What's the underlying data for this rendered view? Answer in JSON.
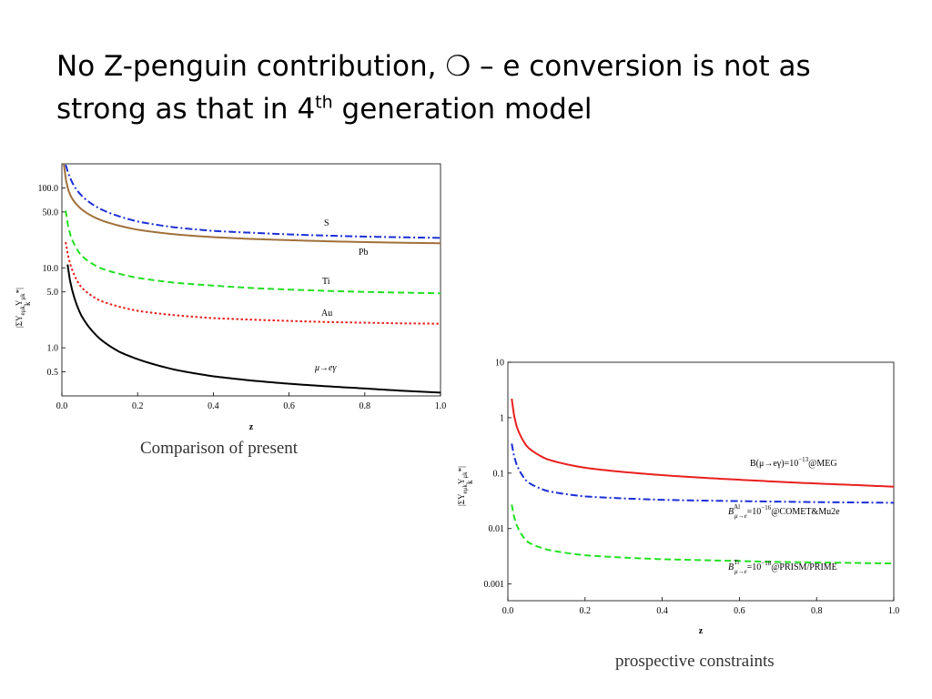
{
  "slide": {
    "title_line1_a": "No Z-penguin contribution, ",
    "title_symbol": "❍",
    "title_line1_b": " – e conversion is not as",
    "title_line2_a": "strong as that in 4",
    "title_line2_sup": "th",
    "title_line2_b": " generation model"
  },
  "captions": {
    "left": "Comparison of present",
    "right": "prospective  constraints"
  },
  "chart_data": [
    {
      "type": "line",
      "xlabel": "z",
      "ylabel_main": "|ΣY",
      "ylabel_sub": "k",
      "ylabel_tail": "eμk",
      "ylabel_end": "Y",
      "ylabel_end_sub": "μk",
      "ylabel_close": "*|",
      "x_ticks": [
        "0.0",
        "0.2",
        "0.4",
        "0.6",
        "0.8",
        "1.0"
      ],
      "y_ticks": [
        "0.5",
        "1.0",
        "5.0",
        "10.0",
        "50.0",
        "100.0"
      ],
      "xlim": [
        0,
        1
      ],
      "ylim": [
        0.25,
        200
      ],
      "yscale": "log",
      "grid": false,
      "series": [
        {
          "name": "S",
          "color": "#1c2fd6",
          "dash": "dashdot",
          "x": [
            0.01,
            0.02,
            0.05,
            0.1,
            0.2,
            0.3,
            0.4,
            0.5,
            0.6,
            0.7,
            0.8,
            0.9,
            1.0
          ],
          "y": [
            195,
            140,
            82,
            55,
            38,
            32,
            29,
            27.5,
            26.2,
            25.3,
            24.6,
            24.1,
            23.7
          ]
        },
        {
          "name": "Pb",
          "color": "#a0703a",
          "dash": "solid",
          "x": [
            0.005,
            0.02,
            0.05,
            0.1,
            0.2,
            0.3,
            0.4,
            0.5,
            0.6,
            0.7,
            0.8,
            0.9,
            1.0
          ],
          "y": [
            200,
            85,
            55,
            40,
            30,
            26.2,
            24.2,
            23.0,
            22.2,
            21.5,
            21.0,
            20.6,
            20.3
          ]
        },
        {
          "name": "Ti",
          "color": "#22e022",
          "dash": "dashed",
          "x": [
            0.01,
            0.02,
            0.05,
            0.1,
            0.2,
            0.3,
            0.4,
            0.5,
            0.6,
            0.7,
            0.8,
            0.9,
            1.0
          ],
          "y": [
            52,
            28,
            14.5,
            10,
            7.5,
            6.5,
            6.0,
            5.6,
            5.35,
            5.15,
            5.0,
            4.9,
            4.8
          ]
        },
        {
          "name": "Au",
          "color": "#e8201e",
          "dash": "dotted",
          "x": [
            0.01,
            0.02,
            0.05,
            0.1,
            0.2,
            0.3,
            0.4,
            0.5,
            0.6,
            0.7,
            0.8,
            0.9,
            1.0
          ],
          "y": [
            21,
            12,
            5.8,
            3.9,
            2.9,
            2.55,
            2.35,
            2.25,
            2.17,
            2.1,
            2.06,
            2.02,
            2.0
          ]
        },
        {
          "name": "μ→eγ",
          "color": "#000000",
          "dash": "solid",
          "x": [
            0.015,
            0.02,
            0.05,
            0.1,
            0.15,
            0.2,
            0.3,
            0.4,
            0.5,
            0.6,
            0.7,
            0.8,
            0.9,
            1.0
          ],
          "y": [
            11,
            7.5,
            2.6,
            1.3,
            0.9,
            0.72,
            0.53,
            0.44,
            0.39,
            0.355,
            0.33,
            0.31,
            0.29,
            0.275
          ]
        }
      ],
      "label_text": {
        "S": "S",
        "Pb": "Pb",
        "Ti": "Ti",
        "Au": "Au",
        "mueg": "μ→eγ"
      }
    },
    {
      "type": "line",
      "xlabel": "z",
      "ylabel_main": "|ΣY",
      "ylabel_sub": "k",
      "ylabel_tail": "eμk",
      "ylabel_end": "Y",
      "ylabel_end_sub": "μk",
      "ylabel_close": "*|",
      "x_ticks": [
        "0.0",
        "0.2",
        "0.4",
        "0.6",
        "0.8",
        "1.0"
      ],
      "y_ticks": [
        "0.001",
        "0.01",
        "0.1",
        "1",
        "10"
      ],
      "xlim": [
        0,
        1
      ],
      "ylim": [
        0.0005,
        10
      ],
      "yscale": "log",
      "grid": false,
      "series": [
        {
          "name": "B(μ→eγ)=10⁻¹³@MEG",
          "color": "#e8201e",
          "dash": "solid",
          "x": [
            0.01,
            0.02,
            0.05,
            0.1,
            0.2,
            0.3,
            0.4,
            0.5,
            0.6,
            0.7,
            0.8,
            0.9,
            1.0
          ],
          "y": [
            2.2,
            0.8,
            0.3,
            0.18,
            0.125,
            0.105,
            0.092,
            0.083,
            0.076,
            0.07,
            0.065,
            0.061,
            0.057
          ]
        },
        {
          "name": "B^Al_μ→e=10⁻¹⁶@COMET&Mu2e",
          "color": "#1c2fd6",
          "dash": "dashdot",
          "x": [
            0.01,
            0.02,
            0.05,
            0.1,
            0.2,
            0.3,
            0.4,
            0.5,
            0.6,
            0.7,
            0.8,
            0.9,
            1.0
          ],
          "y": [
            0.34,
            0.16,
            0.07,
            0.048,
            0.038,
            0.035,
            0.033,
            0.032,
            0.0313,
            0.0306,
            0.03,
            0.0296,
            0.0292
          ]
        },
        {
          "name": "B^Ti_μ→e=10⁻¹⁸@PRISM/PRIME",
          "color": "#22e022",
          "dash": "dashed",
          "x": [
            0.01,
            0.02,
            0.05,
            0.1,
            0.2,
            0.3,
            0.4,
            0.5,
            0.6,
            0.7,
            0.8,
            0.9,
            1.0
          ],
          "y": [
            0.027,
            0.013,
            0.0058,
            0.0042,
            0.0033,
            0.003,
            0.0028,
            0.0027,
            0.0026,
            0.0025,
            0.00245,
            0.0024,
            0.00235
          ]
        }
      ],
      "label_text": {
        "meg_main": "B(μ→eγ)=10",
        "meg_exp": "−13",
        "meg_tail": "@MEG",
        "comet_B": "B",
        "comet_sup": "Al",
        "comet_sub": "μ→e",
        "comet_eq": "=10",
        "comet_exp": "−16",
        "comet_tail": "@COMET&Mu2e",
        "prism_B": "B",
        "prism_sup": "Ti",
        "prism_sub": "μ→e",
        "prism_eq": "=10",
        "prism_exp": "−18",
        "prism_tail": "@PRISM/PRIME"
      }
    }
  ]
}
